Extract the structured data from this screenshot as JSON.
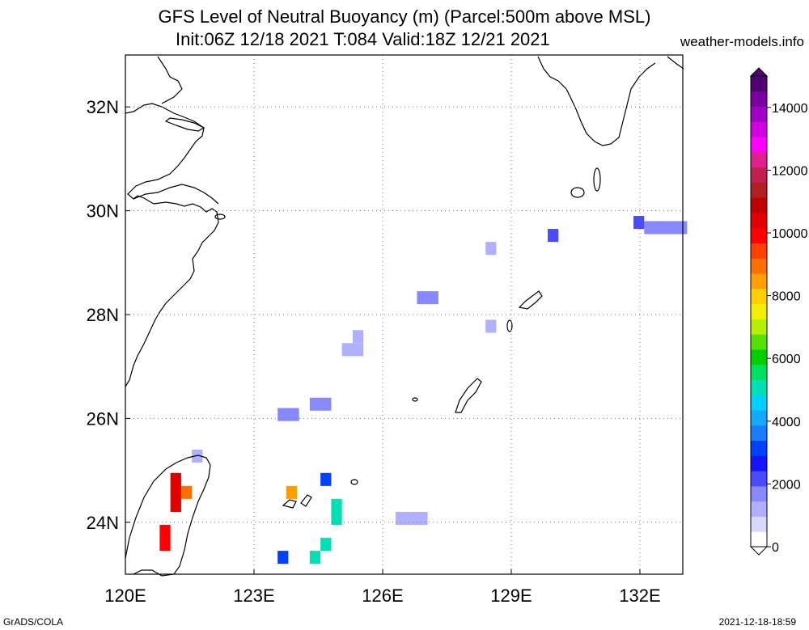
{
  "title_line1": "GFS Level of Neutral Buoyancy (m) (Parcel:500m above MSL)",
  "title_line2": "Init:06Z 12/18 2021 T:084 Valid:18Z 12/21 2021",
  "brand": "weather-models.info",
  "footer_left": "GrADS/COLA",
  "footer_right": "2021-12-18-18:59",
  "map": {
    "lon_range": [
      120,
      133
    ],
    "lat_range": [
      23,
      33
    ],
    "x_ticks": [
      {
        "lon": 120,
        "label": "120E"
      },
      {
        "lon": 123,
        "label": "123E"
      },
      {
        "lon": 126,
        "label": "126E"
      },
      {
        "lon": 129,
        "label": "129E"
      },
      {
        "lon": 132,
        "label": "132E"
      }
    ],
    "y_ticks": [
      {
        "lat": 24,
        "label": "24N"
      },
      {
        "lat": 26,
        "label": "26N"
      },
      {
        "lat": 28,
        "label": "28N"
      },
      {
        "lat": 30,
        "label": "30N"
      },
      {
        "lat": 32,
        "label": "32N"
      }
    ],
    "grid": "dotted",
    "cells": [
      {
        "lon": 132.1,
        "lat": 29.55,
        "w": 1.0,
        "h": 0.25,
        "value": 1900
      },
      {
        "lon": 131.85,
        "lat": 29.65,
        "w": 0.25,
        "h": 0.25,
        "value": 2100
      },
      {
        "lon": 129.85,
        "lat": 29.4,
        "w": 0.25,
        "h": 0.25,
        "value": 2300
      },
      {
        "lon": 128.4,
        "lat": 29.15,
        "w": 0.25,
        "h": 0.25,
        "value": 1400
      },
      {
        "lon": 126.8,
        "lat": 28.2,
        "w": 0.5,
        "h": 0.25,
        "value": 1500
      },
      {
        "lon": 128.4,
        "lat": 27.65,
        "w": 0.25,
        "h": 0.25,
        "value": 1300
      },
      {
        "lon": 125.3,
        "lat": 27.45,
        "w": 0.25,
        "h": 0.25,
        "value": 1200
      },
      {
        "lon": 125.05,
        "lat": 27.2,
        "w": 0.5,
        "h": 0.25,
        "value": 1200
      },
      {
        "lon": 124.3,
        "lat": 26.15,
        "w": 0.5,
        "h": 0.25,
        "value": 1500
      },
      {
        "lon": 123.55,
        "lat": 25.95,
        "w": 0.5,
        "h": 0.25,
        "value": 1700
      },
      {
        "lon": 121.55,
        "lat": 25.15,
        "w": 0.25,
        "h": 0.25,
        "value": 1400
      },
      {
        "lon": 124.55,
        "lat": 24.7,
        "w": 0.25,
        "h": 0.25,
        "value": 3300
      },
      {
        "lon": 123.75,
        "lat": 24.45,
        "w": 0.25,
        "h": 0.25,
        "value": 8500
      },
      {
        "lon": 121.3,
        "lat": 24.45,
        "w": 0.25,
        "h": 0.25,
        "value": 9000
      },
      {
        "lon": 121.05,
        "lat": 24.2,
        "w": 0.25,
        "h": 0.75,
        "value": 10500
      },
      {
        "lon": 126.3,
        "lat": 23.95,
        "w": 0.75,
        "h": 0.25,
        "value": 1400
      },
      {
        "lon": 124.8,
        "lat": 23.95,
        "w": 0.25,
        "h": 0.5,
        "value": 5000
      },
      {
        "lon": 124.55,
        "lat": 23.45,
        "w": 0.25,
        "h": 0.25,
        "value": 5000
      },
      {
        "lon": 124.3,
        "lat": 23.2,
        "w": 0.25,
        "h": 0.25,
        "value": 5000
      },
      {
        "lon": 123.55,
        "lat": 23.2,
        "w": 0.25,
        "h": 0.25,
        "value": 3000
      },
      {
        "lon": 120.8,
        "lat": 23.45,
        "w": 0.25,
        "h": 0.5,
        "value": 10000
      }
    ]
  },
  "colorbar": {
    "labels": [
      {
        "value": 0,
        "label": "0"
      },
      {
        "value": 2000,
        "label": "2000"
      },
      {
        "value": 4000,
        "label": "4000"
      },
      {
        "value": 6000,
        "label": "6000"
      },
      {
        "value": 8000,
        "label": "8000"
      },
      {
        "value": 10000,
        "label": "10000"
      },
      {
        "value": 12000,
        "label": "12000"
      },
      {
        "value": 14000,
        "label": "14000"
      }
    ],
    "colors": [
      "#ffffff",
      "#d8d8ff",
      "#b0b0ff",
      "#8888ff",
      "#4a4aff",
      "#1414ff",
      "#0040ff",
      "#1a7cff",
      "#14a8ff",
      "#00d0ff",
      "#00e0b4",
      "#00e060",
      "#00d000",
      "#58e000",
      "#b4f000",
      "#f0f000",
      "#ffd000",
      "#ffa000",
      "#ff7000",
      "#ff4000",
      "#ff0000",
      "#e00000",
      "#c00000",
      "#b02020",
      "#c02050",
      "#e0208c",
      "#ff00ff",
      "#d000e0",
      "#a000c8",
      "#7a00a0",
      "#500070"
    ],
    "max": 15000
  }
}
